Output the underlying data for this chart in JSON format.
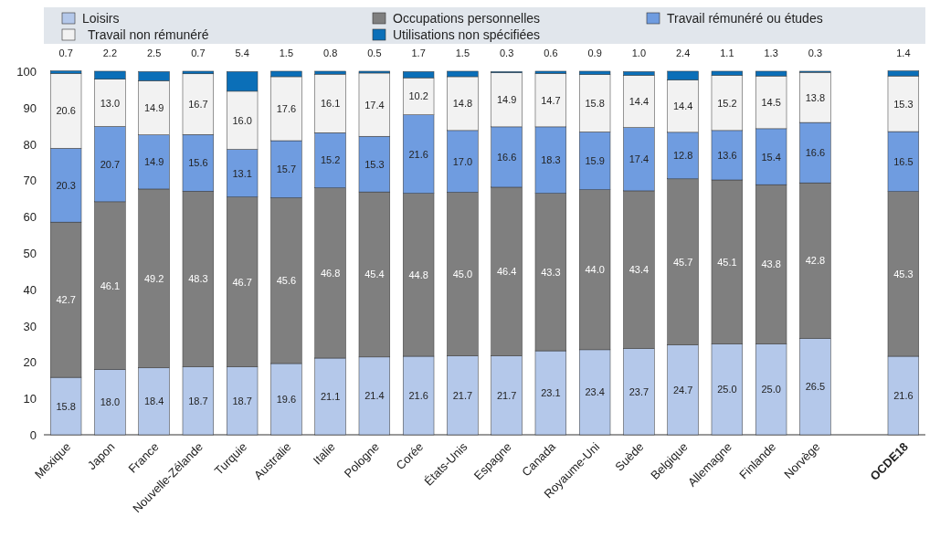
{
  "chart_data": {
    "type": "bar",
    "stacked": true,
    "legend": "top",
    "grid": false,
    "categories": [
      "Mexique",
      "Japon",
      "France",
      "Nouvelle-Zélande",
      "Turquie",
      "Australie",
      "Italie",
      "Pologne",
      "Corée",
      "États-Unis",
      "Espagne",
      "Canada",
      "Royaume-Uni",
      "Suède",
      "Belgique",
      "Allemagne",
      "Finlande",
      "Norvège",
      null,
      "OCDE18"
    ],
    "ylim": [
      0,
      101
    ],
    "yticks": [
      0,
      10,
      20,
      30,
      40,
      50,
      60,
      70,
      80,
      90,
      100
    ],
    "series": [
      {
        "name": "Loisirs",
        "color": "#b4c8ea",
        "values": [
          15.8,
          18.0,
          18.4,
          18.7,
          18.7,
          19.6,
          21.1,
          21.4,
          21.6,
          21.7,
          21.7,
          23.1,
          23.4,
          23.7,
          24.7,
          25.0,
          25.0,
          26.5,
          null,
          21.6
        ],
        "value_labels": [
          "15.8",
          "18.0",
          "18.4",
          "18.7",
          "18.7",
          "19.6",
          "21.1",
          "21.4",
          "21.6",
          "21.7",
          "21.7",
          "23.1",
          "23.4",
          "23.7",
          "24.7",
          "25.0",
          "25.0",
          "26.5",
          null,
          "21.6"
        ]
      },
      {
        "name": "Occupations personnelles",
        "color": "#7f7f7f",
        "values": [
          42.7,
          46.1,
          49.2,
          48.3,
          46.7,
          45.6,
          46.8,
          45.4,
          44.8,
          45.0,
          46.4,
          43.3,
          44.0,
          43.4,
          45.7,
          45.1,
          43.8,
          42.8,
          null,
          45.3
        ],
        "value_labels": [
          "42.7",
          "46.1",
          "49.2",
          "48.3",
          "46.7",
          "45.6",
          "46.8",
          "45.4",
          "44.8",
          "45.0",
          "46.4",
          "43.3",
          "44.0",
          "43.4",
          "45.7",
          "45.1",
          "43.8",
          "42.8",
          null,
          "45.3"
        ]
      },
      {
        "name": "Travail rémunéré ou études",
        "color": "#6f9ce0",
        "values": [
          20.3,
          20.7,
          14.9,
          15.6,
          13.1,
          15.7,
          15.2,
          15.3,
          21.6,
          17.0,
          16.6,
          18.3,
          15.9,
          17.4,
          12.8,
          13.6,
          15.4,
          16.6,
          null,
          16.5
        ],
        "value_labels": [
          "20.3",
          "20.7",
          "14.9",
          "15.6",
          "13.1",
          "15.7",
          "15.2",
          "15.3",
          "21.6",
          "17.0",
          "16.6",
          "18.3",
          "15.9",
          "17.4",
          "12.8",
          "13.6",
          "15.4",
          "16.6",
          null,
          "16.5"
        ]
      },
      {
        "name": "Travail non rémunéré",
        "color": "#f2f2f2",
        "values": [
          20.6,
          13.0,
          14.9,
          16.7,
          16.0,
          17.6,
          16.1,
          17.4,
          10.2,
          14.8,
          14.9,
          14.7,
          15.8,
          14.4,
          14.4,
          15.2,
          14.5,
          13.8,
          null,
          15.3
        ],
        "value_labels": [
          "20.6",
          "13.0",
          "14.9",
          "16.7",
          "16.0",
          "17.6",
          "16.1",
          "17.4",
          "10.2",
          "14.8",
          "14.9",
          "14.7",
          "15.8",
          "14.4",
          "14.4",
          "15.2",
          "14.5",
          "13.8",
          null,
          "15.3"
        ]
      },
      {
        "name": "Utilisations non spécifiées",
        "color": "#0b6fb8",
        "values": [
          0.7,
          2.2,
          2.5,
          0.7,
          5.4,
          1.5,
          0.8,
          0.5,
          1.7,
          1.5,
          0.3,
          0.6,
          0.9,
          1.0,
          2.4,
          1.1,
          1.3,
          0.3,
          null,
          1.4
        ],
        "value_labels": [
          "0.7",
          "2.2",
          "2.5",
          "0.7",
          "5.4",
          "1.5",
          "0.8",
          "0.5",
          "1.7",
          "1.5",
          "0.3",
          "0.6",
          "0.9",
          "1.0",
          "2.4",
          "1.1",
          "1.3",
          "0.3",
          null,
          "1.4"
        ]
      }
    ]
  }
}
